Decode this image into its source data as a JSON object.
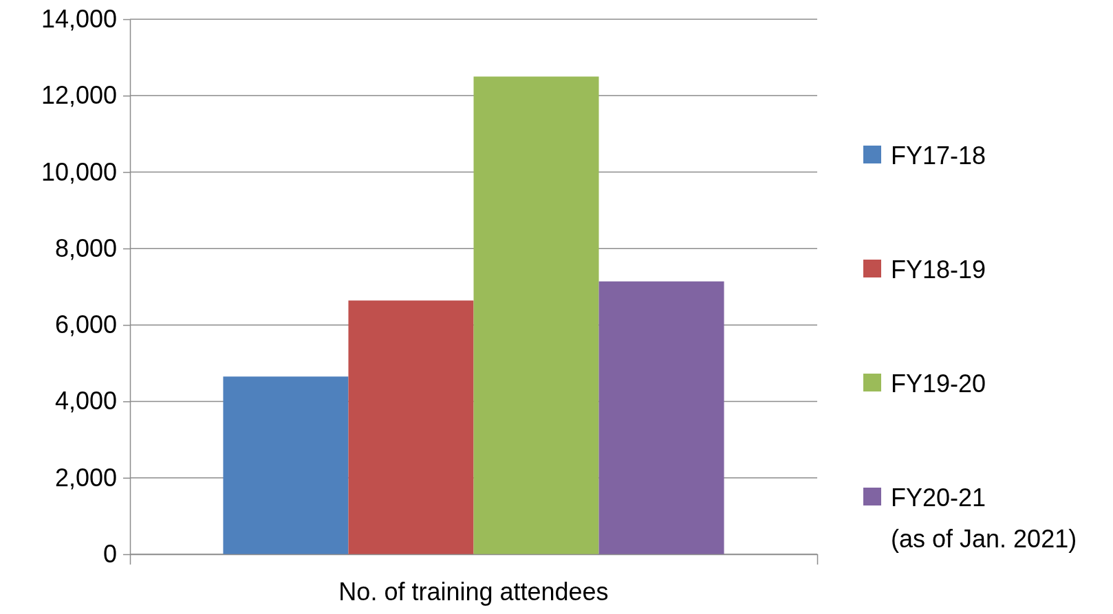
{
  "chart_data": {
    "type": "bar",
    "categories": [
      "No. of training attendees"
    ],
    "series": [
      {
        "name": "FY17-18",
        "color": "#4f81bd",
        "values": [
          4650
        ]
      },
      {
        "name": "FY18-19",
        "color": "#c0504d",
        "values": [
          6640
        ]
      },
      {
        "name": "FY19-20",
        "color": "#9bbb59",
        "values": [
          12500
        ]
      },
      {
        "name": "FY20-21\n(as of Jan. 2021)",
        "color": "#8064a2",
        "values": [
          7140
        ]
      }
    ],
    "ylim": [
      0,
      14000
    ],
    "yticks": [
      0,
      {
        "value": 2000,
        "label": "2,000"
      },
      {
        "value": 4000,
        "label": "4,000"
      },
      {
        "value": 6000,
        "label": "6,000"
      },
      {
        "value": 8000,
        "label": "8,000"
      },
      {
        "value": 10000,
        "label": "10,000"
      },
      {
        "value": 12000,
        "label": "12,000"
      },
      {
        "value": 14000,
        "label": "14,000"
      }
    ],
    "grid": "y",
    "legend": "right"
  }
}
